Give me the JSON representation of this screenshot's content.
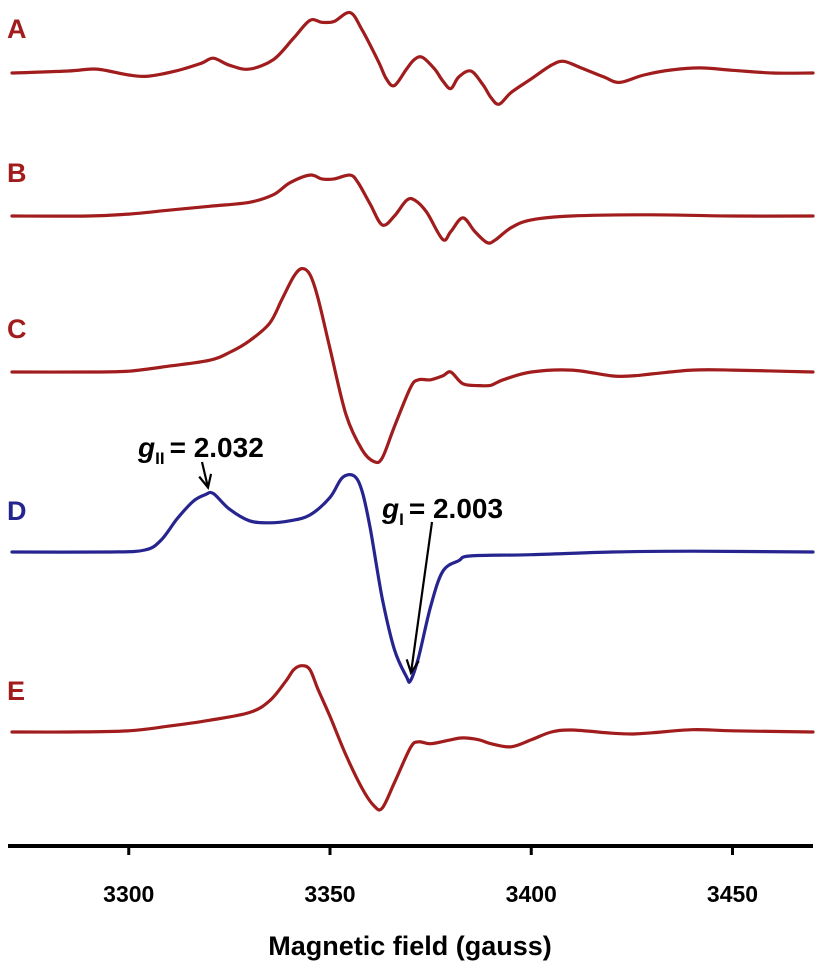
{
  "chart_data": {
    "type": "line",
    "title": "",
    "xlabel": "Magnetic field (gauss)",
    "ylabel": "",
    "xlim": [
      3270,
      3470
    ],
    "xticks": [
      3300,
      3350,
      3400,
      3450
    ],
    "grid": false,
    "colors": {
      "red": "#a11c1c",
      "blue": "#26248f",
      "axis": "#000000"
    },
    "series": [
      {
        "name": "A",
        "color": "#a11c1c",
        "x": [
          3271,
          3285,
          3292,
          3300,
          3305,
          3312,
          3318,
          3321,
          3325,
          3330,
          3336,
          3341,
          3345,
          3348,
          3351,
          3355,
          3358,
          3362,
          3364,
          3366,
          3369,
          3371,
          3373,
          3376,
          3378,
          3380,
          3382,
          3385,
          3388,
          3390,
          3392,
          3395,
          3400,
          3405,
          3408,
          3412,
          3418,
          3422,
          3428,
          3435,
          3442,
          3450,
          3460,
          3470
        ],
        "y": [
          0,
          0.5,
          1,
          -0.5,
          -0.8,
          0.6,
          2.5,
          3.8,
          2,
          1,
          3.5,
          9,
          13.5,
          13,
          13.2,
          15.5,
          11,
          3,
          -1.5,
          -3.2,
          1,
          3.5,
          4,
          1,
          -2,
          -4,
          -1,
          0.5,
          -3,
          -6.3,
          -8,
          -5,
          -1.5,
          2,
          3,
          1.5,
          -1,
          -2.4,
          -0.5,
          0.8,
          1.3,
          0.7,
          0,
          0
        ]
      },
      {
        "name": "B",
        "color": "#a11c1c",
        "x": [
          3271,
          3290,
          3300,
          3310,
          3320,
          3330,
          3336,
          3340,
          3345,
          3348,
          3351,
          3355,
          3357,
          3360,
          3363,
          3366,
          3369,
          3371,
          3374,
          3378,
          3380,
          3383,
          3386,
          3389,
          3391,
          3395,
          3400,
          3410,
          3430,
          3450,
          3470
        ],
        "y": [
          0,
          0,
          0.5,
          1.5,
          2.5,
          3.5,
          5.5,
          8.5,
          10.5,
          9.5,
          9.5,
          10.5,
          8.5,
          3,
          -2.3,
          0,
          4,
          4.1,
          1,
          -6,
          -4,
          -0.5,
          -4,
          -6.8,
          -6.2,
          -3,
          -1,
          0,
          0.3,
          0,
          0
        ]
      },
      {
        "name": "C",
        "color": "#a11c1c",
        "x": [
          3271,
          3290,
          3300,
          3310,
          3320,
          3325,
          3330,
          3335,
          3338,
          3341,
          3343,
          3345,
          3347,
          3350,
          3354,
          3358,
          3361,
          3363,
          3366,
          3370,
          3372,
          3375,
          3378,
          3380,
          3383,
          3387,
          3390,
          3393,
          3400,
          3410,
          3420,
          3425,
          3430,
          3440,
          3450,
          3470
        ],
        "y": [
          0,
          0,
          0.2,
          1.5,
          3,
          5,
          8,
          12.5,
          18.5,
          24.5,
          26.5,
          25,
          19,
          6,
          -11,
          -20,
          -23,
          -22,
          -14,
          -4,
          -2,
          -2,
          -1,
          0,
          -3,
          -3.5,
          -3.4,
          -2,
          0,
          0.5,
          -1,
          -1,
          -0.5,
          0.5,
          0.5,
          0
        ]
      },
      {
        "name": "D",
        "color": "#26248f",
        "x": [
          3271,
          3295,
          3304,
          3308,
          3312,
          3316,
          3319,
          3321,
          3325,
          3330,
          3335,
          3340,
          3345,
          3350,
          3353,
          3356,
          3358,
          3360,
          3363,
          3366,
          3369,
          3370,
          3372,
          3375,
          3378,
          3382,
          3385,
          3400,
          3420,
          3440,
          3470
        ],
        "y": [
          0,
          0,
          0.5,
          3,
          8.5,
          13,
          14.7,
          15,
          11,
          8,
          7.5,
          8,
          9.5,
          14,
          19,
          19.5,
          15.5,
          6,
          -12,
          -25,
          -32,
          -33,
          -27,
          -14,
          -5,
          -2.2,
          -1,
          -0.7,
          0,
          0.2,
          0
        ]
      },
      {
        "name": "E",
        "color": "#a11c1c",
        "x": [
          3271,
          3285,
          3300,
          3310,
          3320,
          3330,
          3335,
          3339,
          3341,
          3343,
          3345,
          3347,
          3350,
          3354,
          3358,
          3361,
          3363,
          3366,
          3370,
          3372,
          3375,
          3380,
          3383,
          3387,
          3390,
          3395,
          3400,
          3405,
          3410,
          3420,
          3425,
          3430,
          3440,
          3450,
          3470
        ],
        "y": [
          0,
          0,
          0.3,
          1.5,
          3,
          5,
          8,
          13,
          16,
          17,
          16,
          11,
          4,
          -6,
          -14.5,
          -19,
          -19.5,
          -13,
          -4,
          -2.5,
          -3,
          -2,
          -1.5,
          -2,
          -3,
          -3.8,
          -2,
          0,
          0.5,
          -0.3,
          -0.5,
          -0.2,
          0.6,
          0.3,
          0
        ]
      }
    ],
    "annotations": [
      {
        "symbol": "g",
        "subscript": "II",
        "text": "= 2.032",
        "points_to": {
          "series": "D",
          "x": 3321
        }
      },
      {
        "symbol": "g",
        "subscript": "I",
        "text": "= 2.003",
        "points_to": {
          "series": "D",
          "x": 3370
        }
      }
    ]
  }
}
